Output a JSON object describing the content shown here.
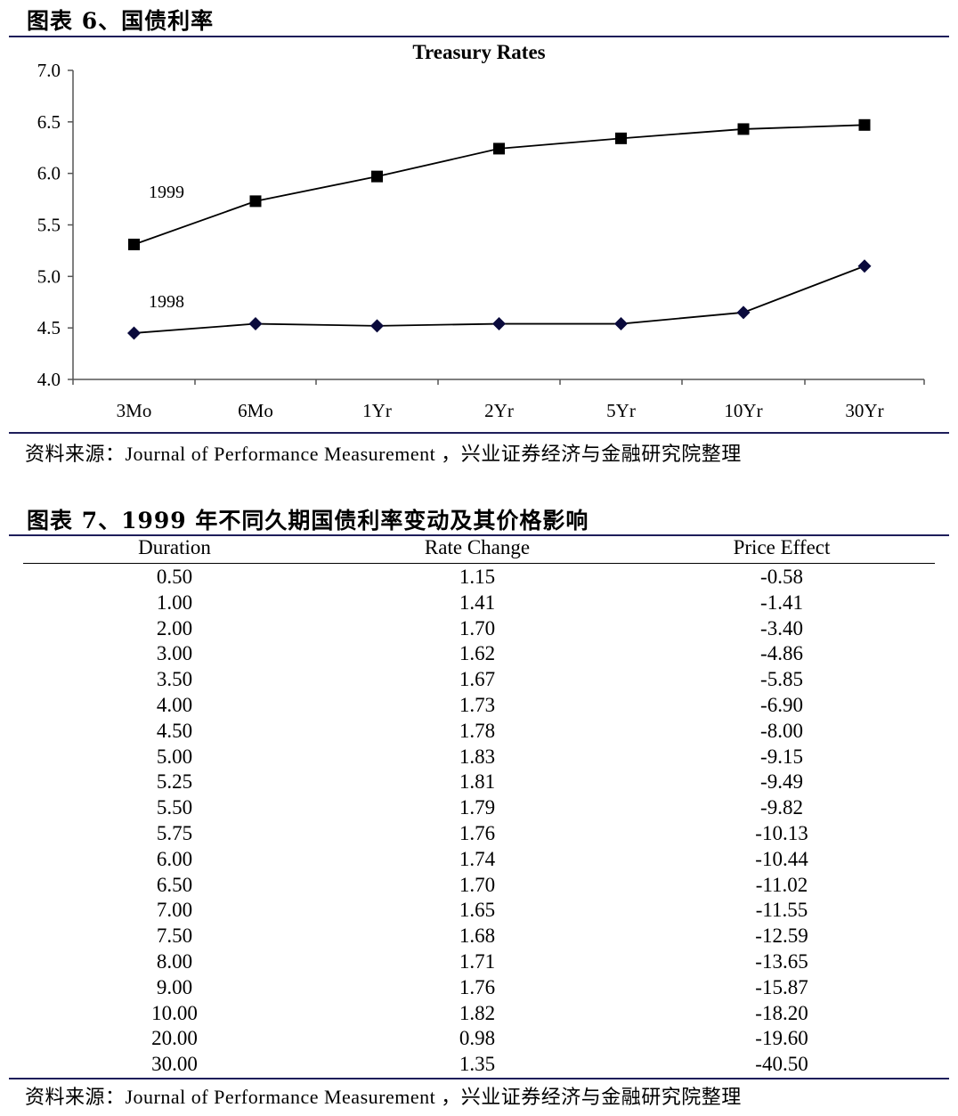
{
  "figure6": {
    "title": "图表 6、国债利率",
    "source": "资料来源：Journal of Performance Measurement ，兴业证券经济与金融研究院整理"
  },
  "chart_data": {
    "type": "line",
    "title": "Treasury Rates",
    "categories": [
      "3Mo",
      "6Mo",
      "1Yr",
      "2Yr",
      "5Yr",
      "10Yr",
      "30Yr"
    ],
    "ylim": [
      4.0,
      7.0
    ],
    "yticks": [
      "7.0",
      "6.5",
      "6.0",
      "5.5",
      "5.0",
      "4.5",
      "4.0"
    ],
    "grid": false,
    "series": [
      {
        "name": "1999",
        "marker": "square",
        "values": [
          5.31,
          5.73,
          5.97,
          6.24,
          6.34,
          6.43,
          6.47
        ]
      },
      {
        "name": "1998",
        "marker": "diamond",
        "values": [
          4.45,
          4.54,
          4.52,
          4.54,
          4.54,
          4.65,
          5.1
        ]
      }
    ],
    "colors": {
      "line": "#000000",
      "marker_1999": "#000000",
      "marker_1998": "#0a0a3c"
    }
  },
  "figure7": {
    "title": "图表 7、1999 年不同久期国债利率变动及其价格影响",
    "source": "资料来源：Journal of Performance Measurement ，兴业证券经济与金融研究院整理",
    "headers": [
      "Duration",
      "Rate Change",
      "Price Effect"
    ],
    "rows": [
      [
        "0.50",
        "1.15",
        "-0.58"
      ],
      [
        "1.00",
        "1.41",
        "-1.41"
      ],
      [
        "2.00",
        "1.70",
        "-3.40"
      ],
      [
        "3.00",
        "1.62",
        "-4.86"
      ],
      [
        "3.50",
        "1.67",
        "-5.85"
      ],
      [
        "4.00",
        "1.73",
        "-6.90"
      ],
      [
        "4.50",
        "1.78",
        "-8.00"
      ],
      [
        "5.00",
        "1.83",
        "-9.15"
      ],
      [
        "5.25",
        "1.81",
        "-9.49"
      ],
      [
        "5.50",
        "1.79",
        "-9.82"
      ],
      [
        "5.75",
        "1.76",
        "-10.13"
      ],
      [
        "6.00",
        "1.74",
        "-10.44"
      ],
      [
        "6.50",
        "1.70",
        "-11.02"
      ],
      [
        "7.00",
        "1.65",
        "-11.55"
      ],
      [
        "7.50",
        "1.68",
        "-12.59"
      ],
      [
        "8.00",
        "1.71",
        "-13.65"
      ],
      [
        "9.00",
        "1.76",
        "-15.87"
      ],
      [
        "10.00",
        "1.82",
        "-18.20"
      ],
      [
        "20.00",
        "0.98",
        "-19.60"
      ],
      [
        "30.00",
        "1.35",
        "-40.50"
      ]
    ]
  }
}
